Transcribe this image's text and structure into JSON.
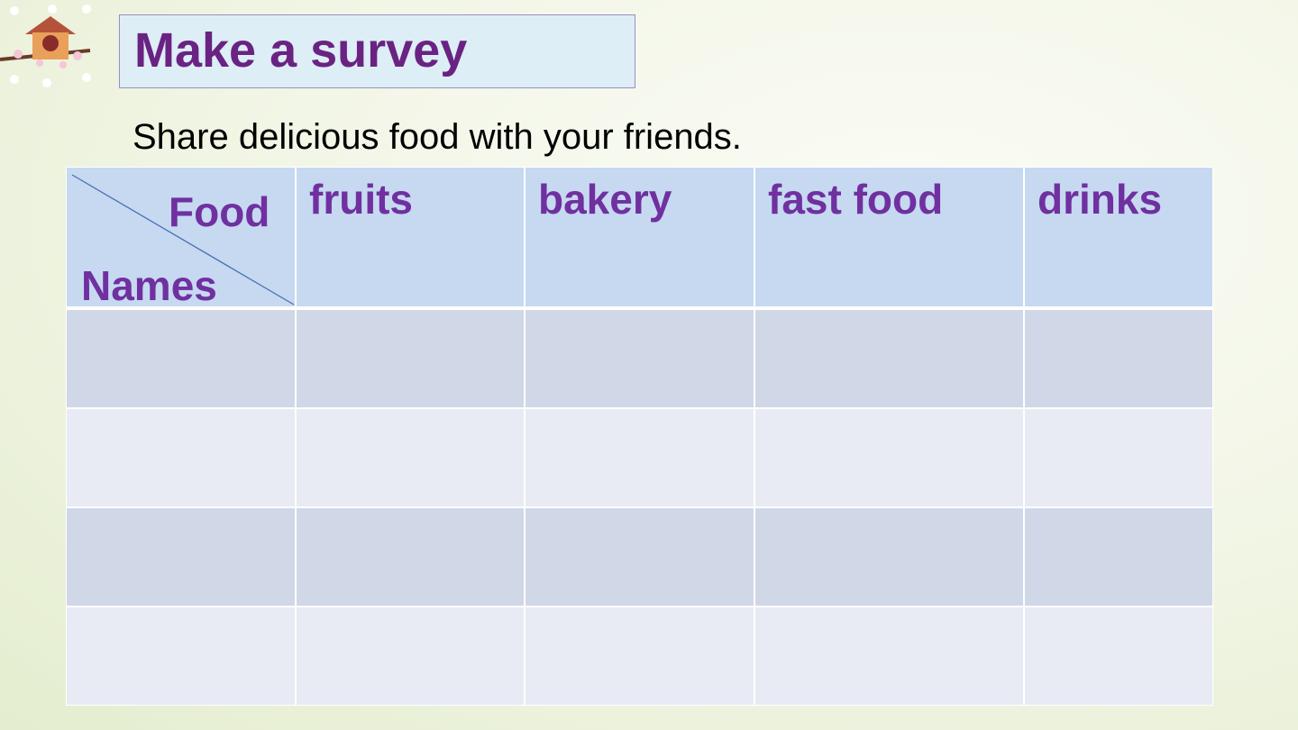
{
  "header": {
    "title": "Make a survey",
    "subtitle": "Share delicious food with your friends."
  },
  "table": {
    "corner": {
      "top": "Food",
      "bottom": "Names"
    },
    "columns": [
      "fruits",
      "bakery",
      "fast food",
      "drinks"
    ]
  }
}
